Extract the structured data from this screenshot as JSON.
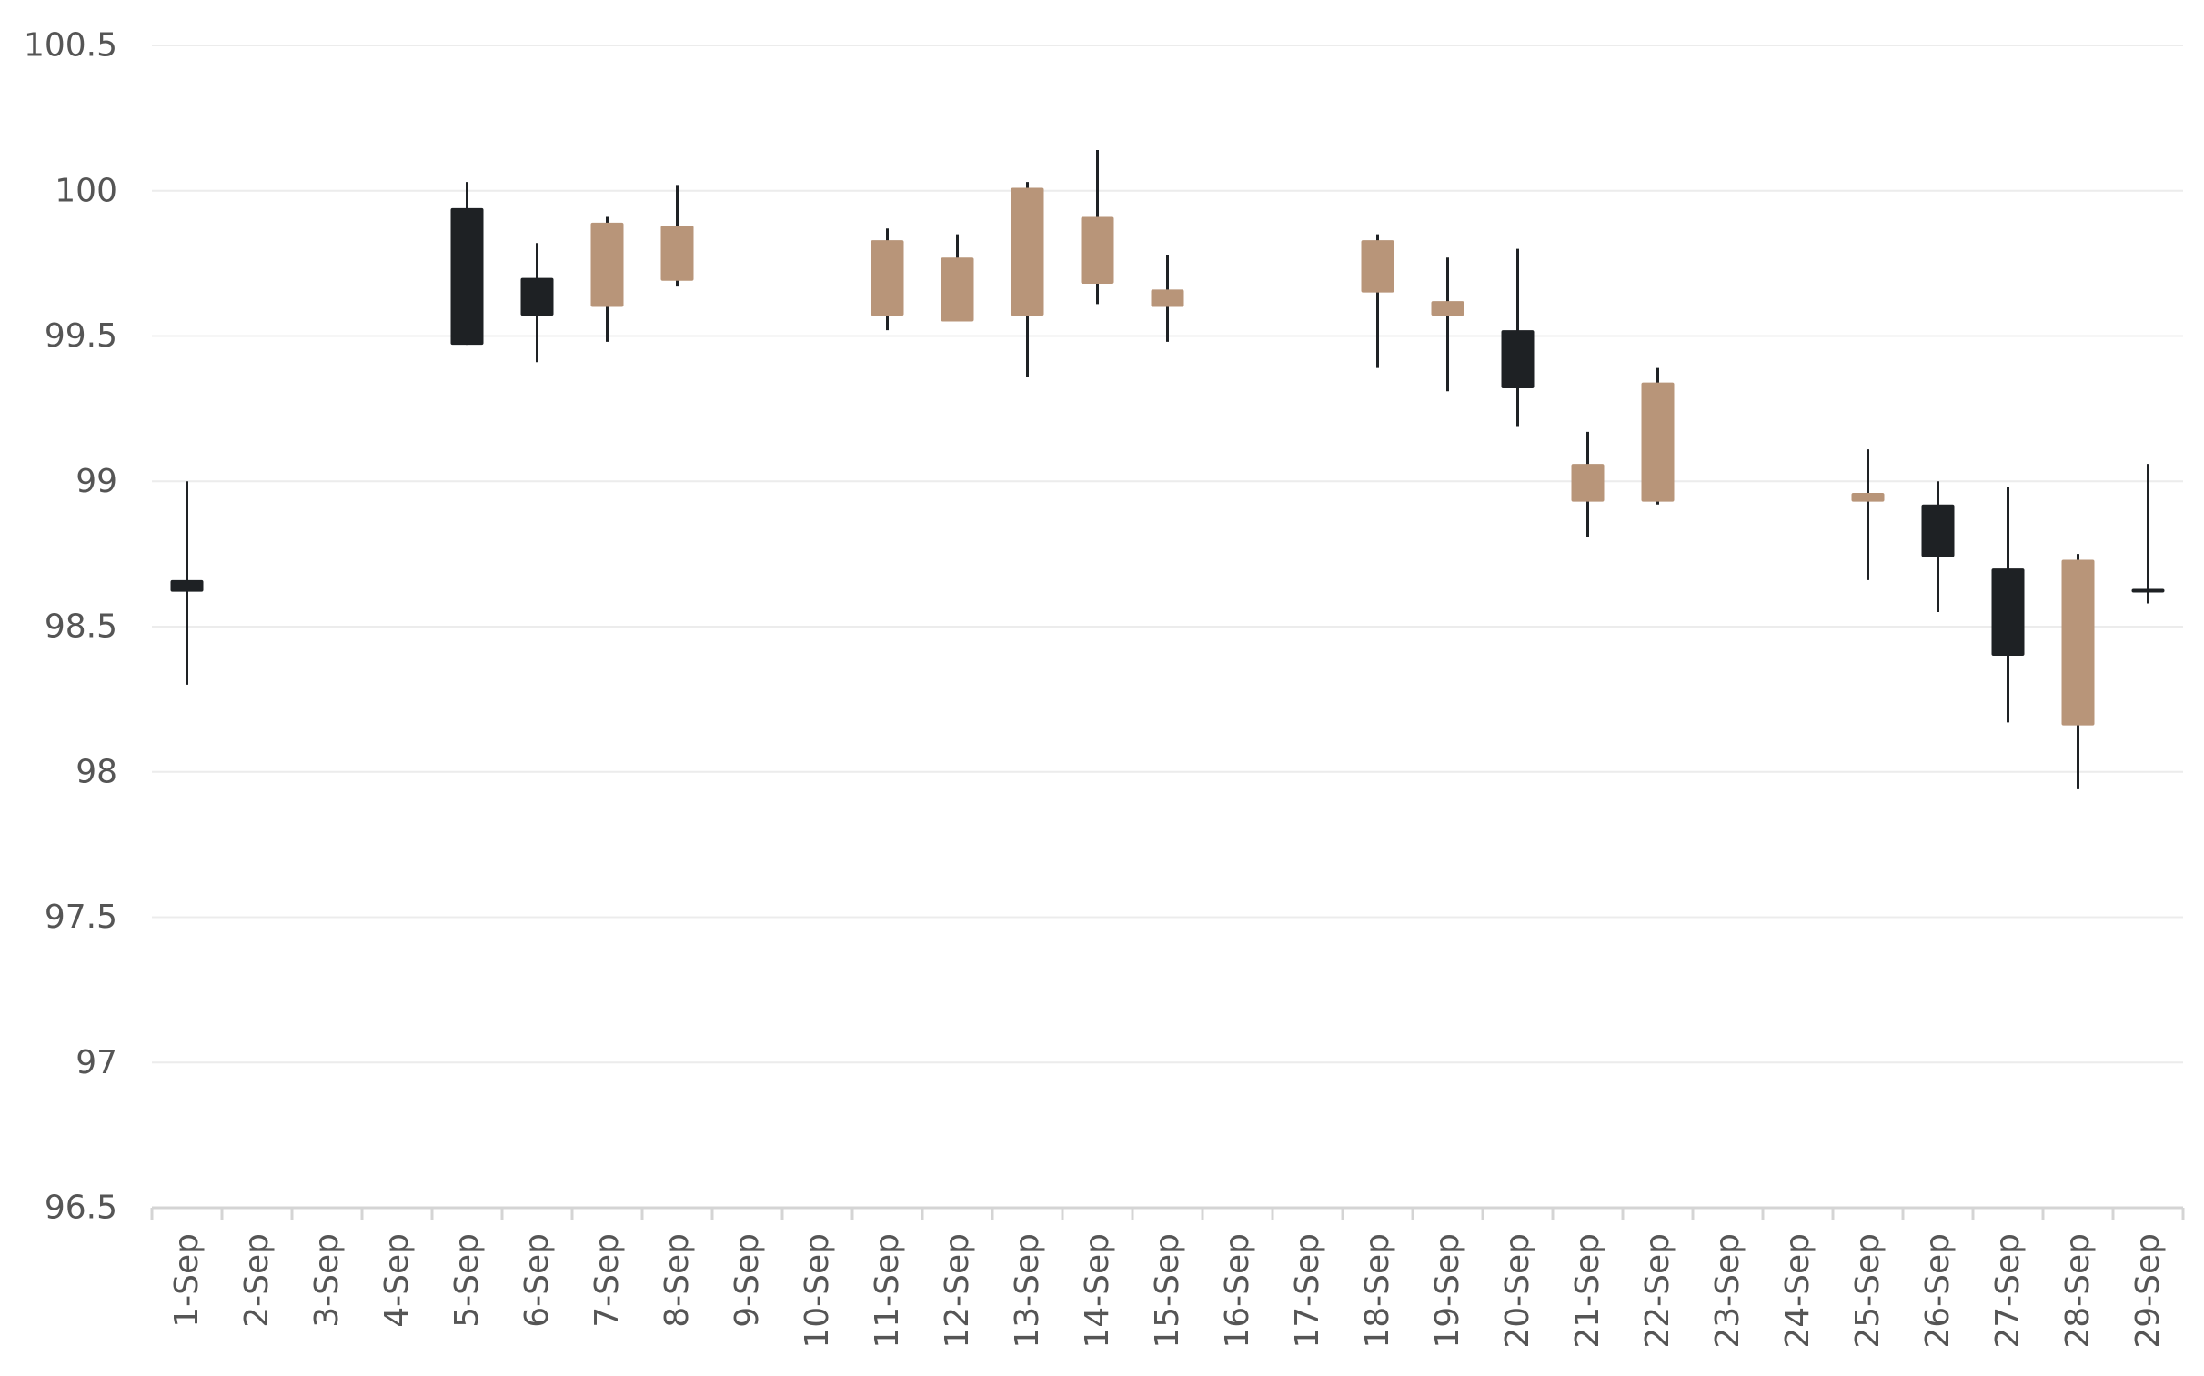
{
  "chart_data": {
    "type": "candlestick",
    "title": "",
    "xlabel": "",
    "ylabel": "",
    "ylim": [
      96.5,
      100.5
    ],
    "yticks": [
      96.5,
      97,
      97.5,
      98,
      98.5,
      99,
      99.5,
      100,
      100.5
    ],
    "ytick_labels": [
      "96.5",
      "97",
      "97.5",
      "98",
      "98.5",
      "99",
      "99.5",
      "100",
      "100.5"
    ],
    "grid": true,
    "legend": "none",
    "colors": {
      "up": "#b89579",
      "down": "#1e2124",
      "grid": "#ececec",
      "axis": "#d4d4d4",
      "text": "#555555"
    },
    "categories": [
      "1-Sep",
      "2-Sep",
      "3-Sep",
      "4-Sep",
      "5-Sep",
      "6-Sep",
      "7-Sep",
      "8-Sep",
      "9-Sep",
      "10-Sep",
      "11-Sep",
      "12-Sep",
      "13-Sep",
      "14-Sep",
      "15-Sep",
      "16-Sep",
      "17-Sep",
      "18-Sep",
      "19-Sep",
      "20-Sep",
      "21-Sep",
      "22-Sep",
      "23-Sep",
      "24-Sep",
      "25-Sep",
      "26-Sep",
      "27-Sep",
      "28-Sep",
      "29-Sep"
    ],
    "candles": [
      {
        "date": "1-Sep",
        "open": 98.66,
        "high": 99.0,
        "low": 98.3,
        "close": 98.62
      },
      {
        "date": "5-Sep",
        "open": 99.94,
        "high": 100.03,
        "low": 99.47,
        "close": 99.47
      },
      {
        "date": "6-Sep",
        "open": 99.7,
        "high": 99.82,
        "low": 99.41,
        "close": 99.57
      },
      {
        "date": "7-Sep",
        "open": 99.6,
        "high": 99.91,
        "low": 99.48,
        "close": 99.89
      },
      {
        "date": "8-Sep",
        "open": 99.69,
        "high": 100.02,
        "low": 99.67,
        "close": 99.88
      },
      {
        "date": "11-Sep",
        "open": 99.57,
        "high": 99.87,
        "low": 99.52,
        "close": 99.83
      },
      {
        "date": "12-Sep",
        "open": 99.55,
        "high": 99.85,
        "low": 99.55,
        "close": 99.77
      },
      {
        "date": "13-Sep",
        "open": 99.57,
        "high": 100.03,
        "low": 99.36,
        "close": 100.01
      },
      {
        "date": "14-Sep",
        "open": 99.68,
        "high": 100.14,
        "low": 99.61,
        "close": 99.91
      },
      {
        "date": "15-Sep",
        "open": 99.6,
        "high": 99.78,
        "low": 99.48,
        "close": 99.66
      },
      {
        "date": "18-Sep",
        "open": 99.65,
        "high": 99.85,
        "low": 99.39,
        "close": 99.83
      },
      {
        "date": "19-Sep",
        "open": 99.57,
        "high": 99.77,
        "low": 99.31,
        "close": 99.62
      },
      {
        "date": "20-Sep",
        "open": 99.52,
        "high": 99.8,
        "low": 99.19,
        "close": 99.32
      },
      {
        "date": "21-Sep",
        "open": 98.93,
        "high": 99.17,
        "low": 98.81,
        "close": 99.06
      },
      {
        "date": "22-Sep",
        "open": 98.93,
        "high": 99.39,
        "low": 98.92,
        "close": 99.34
      },
      {
        "date": "25-Sep",
        "open": 98.93,
        "high": 99.11,
        "low": 98.66,
        "close": 98.96
      },
      {
        "date": "26-Sep",
        "open": 98.92,
        "high": 99.0,
        "low": 98.55,
        "close": 98.74
      },
      {
        "date": "27-Sep",
        "open": 98.7,
        "high": 98.98,
        "low": 98.17,
        "close": 98.4
      },
      {
        "date": "28-Sep",
        "open": 98.16,
        "high": 98.75,
        "low": 97.94,
        "close": 98.73
      },
      {
        "date": "29-Sep",
        "open": 98.63,
        "high": 99.06,
        "low": 98.58,
        "close": 98.62
      }
    ]
  }
}
